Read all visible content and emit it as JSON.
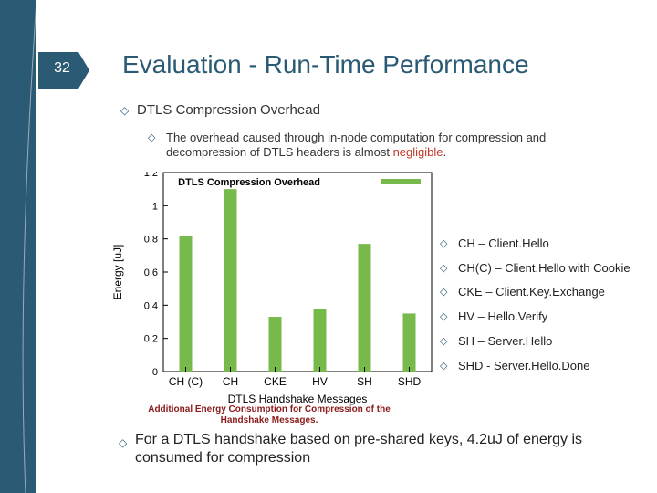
{
  "slide": {
    "number": "32",
    "title": "Evaluation - Run-Time Performance",
    "bullet_main": "DTLS Compression Overhead",
    "sub_bullet_prefix": "The overhead caused through in-node computation for compression and decompression of DTLS headers is almost ",
    "sub_bullet_highlight": "negligible",
    "sub_bullet_suffix": ".",
    "legend_items": [
      "CH – Client.Hello",
      "CH(C) – Client.Hello with Cookie",
      "CKE – Client.Key.Exchange",
      "HV – Hello.Verify",
      "SH – Server.Hello",
      "SHD - Server.Hello.Done"
    ],
    "bottom_bullet": "For a DTLS handshake based on pre-shared keys, 4.2uJ of energy is consumed for compression",
    "chart_caption": "Additional Energy Consumption for Compression of the Handshake Messages.",
    "colors": {
      "accent": "#2a5a74",
      "bar": "#77b94a",
      "highlight": "#c0392b"
    }
  },
  "chart_data": {
    "type": "bar",
    "title": "",
    "xlabel": "DTLS Handshake Messages",
    "ylabel": "Energy [uJ]",
    "categories": [
      "CH (C)",
      "CH",
      "CKE",
      "HV",
      "SH",
      "SHD"
    ],
    "series": [
      {
        "name": "DTLS Compression Overhead",
        "values": [
          0.82,
          1.1,
          0.33,
          0.38,
          0.77,
          0.35
        ]
      }
    ],
    "ylim": [
      0,
      1.2
    ],
    "yticks": [
      0,
      0.2,
      0.4,
      0.6,
      0.8,
      1,
      1.2
    ],
    "legend_placement": "top",
    "grid": false
  }
}
